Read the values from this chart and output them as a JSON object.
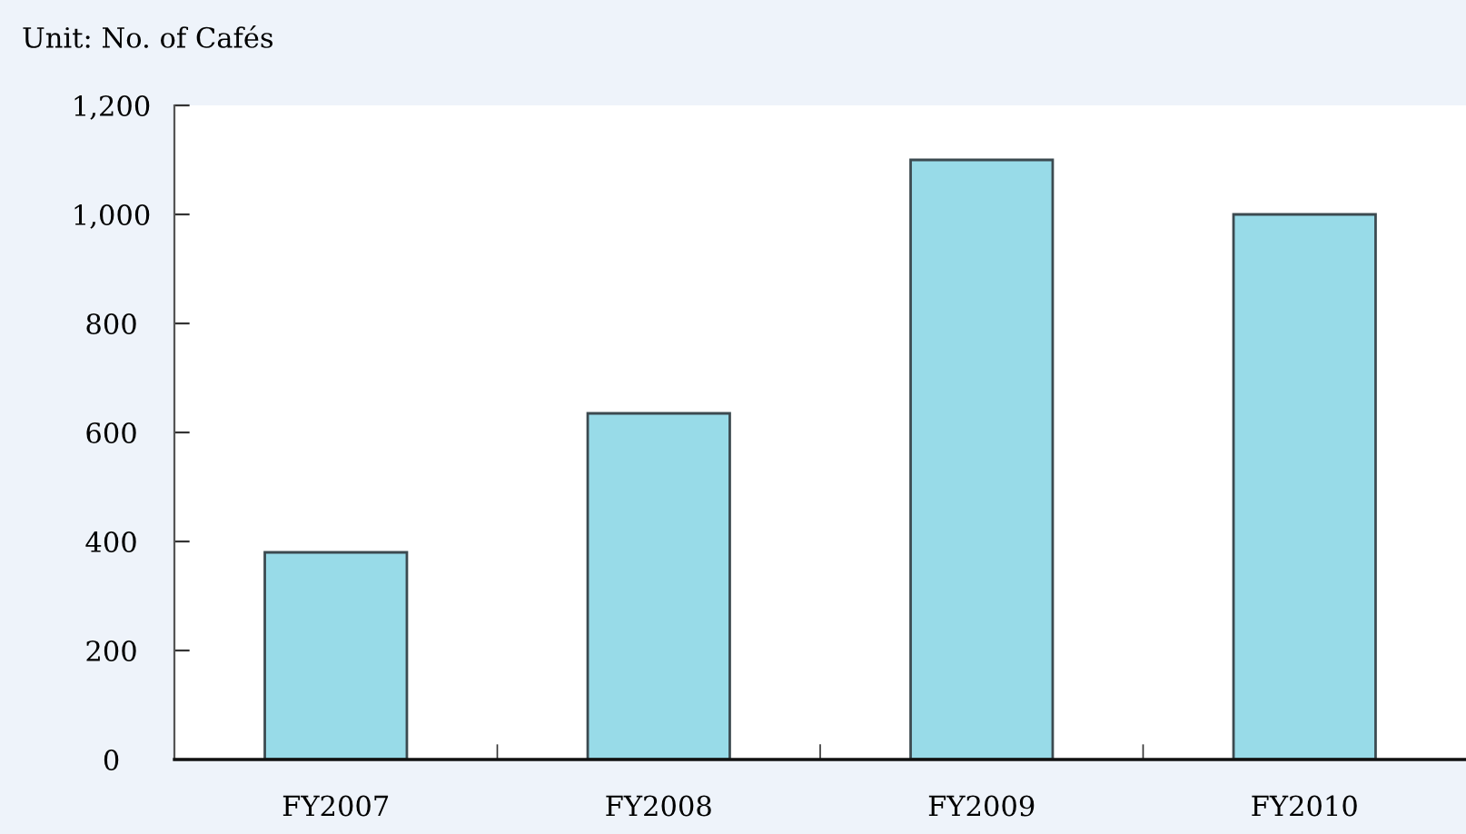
{
  "chart_data": {
    "type": "bar",
    "title": "Unit: No. of Cafés",
    "categories": [
      "FY2007",
      "FY2008",
      "FY2009",
      "FY2010"
    ],
    "values": [
      380,
      635,
      1100,
      1000
    ],
    "color": "#98dbe8",
    "ylim": [
      0,
      1200
    ],
    "yticks": [
      0,
      200,
      400,
      600,
      800,
      {
        "value": 1000,
        "label": "1,000"
      },
      {
        "value": 1200,
        "label": "1,200"
      }
    ],
    "grid": false,
    "legend": false
  }
}
